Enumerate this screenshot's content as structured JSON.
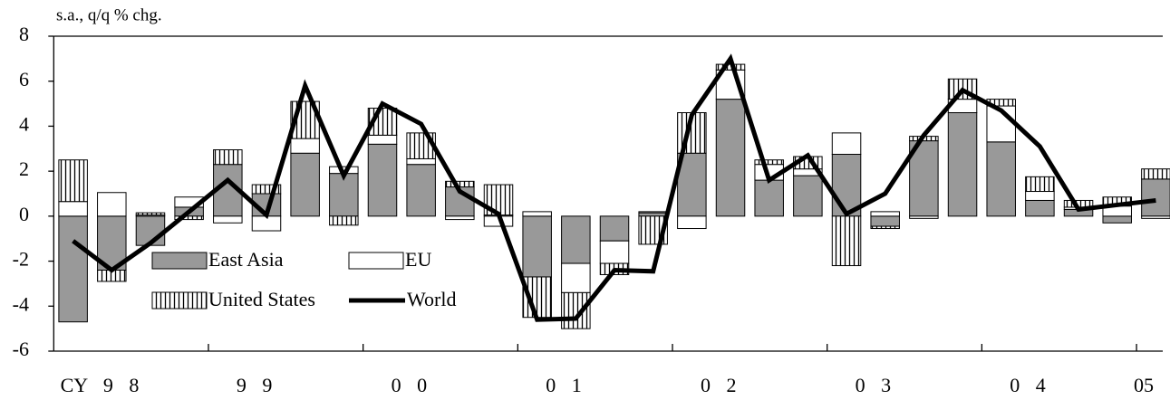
{
  "chart_data": {
    "type": "bar",
    "stacked": true,
    "title": "s.a., q/q % chg.",
    "categories": [
      null,
      "CY 9 8",
      null,
      null,
      null,
      "9 9",
      null,
      null,
      null,
      "0 0",
      null,
      null,
      null,
      "0 1",
      null,
      null,
      null,
      "0 2",
      null,
      null,
      null,
      "0 3",
      null,
      null,
      null,
      "0 4",
      null,
      null,
      "05"
    ],
    "series": [
      {
        "name": "East Asia",
        "color": "#999999",
        "values": [
          -4.7,
          -2.4,
          -1.3,
          0.4,
          2.3,
          1.0,
          2.8,
          1.9,
          3.2,
          2.3,
          1.3,
          0.05,
          -2.7,
          -2.1,
          -1.1,
          0.15,
          2.8,
          5.2,
          1.6,
          1.8,
          2.75,
          -0.45,
          3.35,
          4.6,
          3.3,
          0.7,
          0.3,
          -0.3,
          1.65
        ]
      },
      {
        "name": "EU",
        "color": "#ffffff",
        "values": [
          0.65,
          1.05,
          0.05,
          0.45,
          -0.3,
          -0.65,
          0.65,
          0.3,
          0.4,
          0.25,
          -0.15,
          -0.45,
          0.2,
          -1.3,
          -1.0,
          0.05,
          -0.55,
          1.3,
          0.7,
          0.3,
          0.95,
          0.2,
          -0.1,
          0.6,
          1.6,
          0.4,
          0.1,
          0.45,
          -0.1
        ]
      },
      {
        "name": "United States",
        "color": "#000000",
        "pattern": "vertical",
        "values": [
          1.85,
          -0.5,
          0.1,
          -0.15,
          0.65,
          0.4,
          1.65,
          -0.4,
          1.2,
          1.15,
          0.25,
          1.35,
          -1.8,
          -1.6,
          -0.5,
          -1.25,
          1.8,
          0.25,
          0.2,
          0.55,
          -2.2,
          -0.1,
          0.2,
          0.9,
          0.3,
          0.65,
          0.3,
          0.4,
          0.45
        ]
      },
      {
        "name": "World",
        "color": "#000000",
        "type": "line",
        "values": [
          -1.1,
          -2.4,
          -1.2,
          0.2,
          1.6,
          0.05,
          5.8,
          1.8,
          5.0,
          4.1,
          1.1,
          0.1,
          -4.6,
          -4.55,
          -2.4,
          -2.45,
          4.5,
          7.0,
          1.6,
          2.7,
          0.1,
          1.0,
          3.6,
          5.6,
          4.7,
          3.1,
          0.3,
          0.5,
          0.7
        ]
      }
    ],
    "ylim": [
      -6,
      8
    ],
    "yticks": [
      -6,
      -4,
      -2,
      0,
      2,
      4,
      6,
      8
    ],
    "legend": "lower left"
  }
}
